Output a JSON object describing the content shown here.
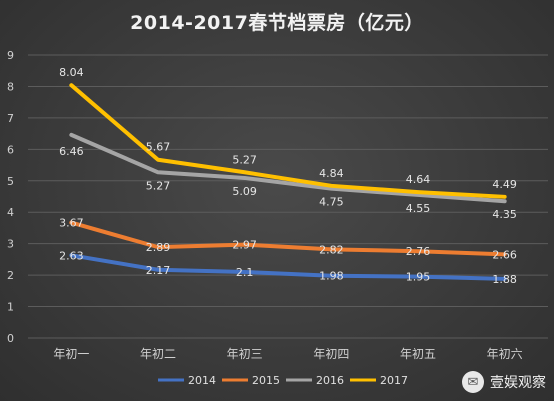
{
  "chart_data": {
    "type": "line",
    "title": "2014-2017春节档票房（亿元）",
    "categories": [
      "年初一",
      "年初二",
      "年初三",
      "年初四",
      "年初五",
      "年初六"
    ],
    "ylim": [
      0,
      9
    ],
    "yticks": [
      0,
      1,
      2,
      3,
      4,
      5,
      6,
      7,
      8,
      9
    ],
    "grid": true,
    "legend_position": "bottom",
    "series": [
      {
        "name": "2014",
        "color": "#4472c4",
        "values": [
          2.63,
          2.17,
          2.1,
          1.98,
          1.95,
          1.88
        ]
      },
      {
        "name": "2015",
        "color": "#ed7d31",
        "values": [
          3.67,
          2.89,
          2.97,
          2.82,
          2.76,
          2.66
        ]
      },
      {
        "name": "2016",
        "color": "#a5a5a5",
        "values": [
          6.46,
          5.27,
          5.09,
          4.75,
          4.55,
          4.35
        ]
      },
      {
        "name": "2017",
        "color": "#ffc000",
        "values": [
          8.04,
          5.67,
          5.27,
          4.84,
          4.64,
          4.49
        ]
      }
    ]
  },
  "watermark": {
    "text": "壹娱观察",
    "icon": "wechat-icon"
  }
}
